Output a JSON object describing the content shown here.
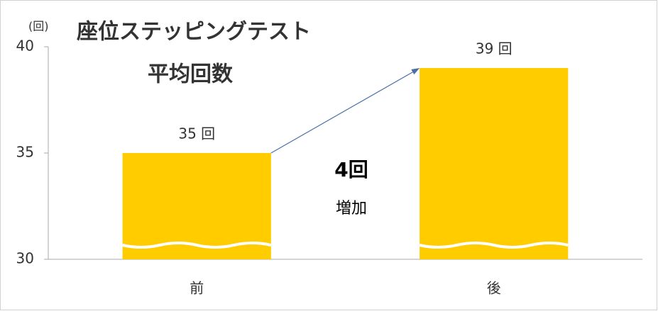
{
  "chart_data": {
    "type": "bar",
    "title": "座位ステッピングテスト",
    "subtitle": "平均回数",
    "y_label": "(回)",
    "categories": [
      "前",
      "後"
    ],
    "values": [
      35,
      39
    ],
    "value_labels": [
      "35 回",
      "39 回"
    ],
    "color": "#ffcc00",
    "ylim": [
      30,
      40
    ],
    "yticks": [
      30,
      35,
      40
    ],
    "grid": false,
    "annotations": [
      "4回",
      "増加"
    ]
  }
}
